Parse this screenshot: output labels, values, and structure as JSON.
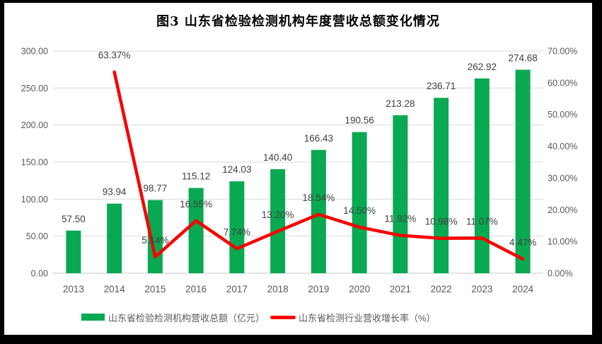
{
  "frame": {
    "outer_border_color": "#000000",
    "chart_background": "#FFFFFF"
  },
  "chart_data": {
    "type": "combo",
    "title": "图3  山东省检验检测机构年度营收总额变化情况",
    "categories": [
      "2013",
      "2014",
      "2015",
      "2016",
      "2017",
      "2018",
      "2019",
      "2020",
      "2021",
      "2022",
      "2023",
      "2024"
    ],
    "series": [
      {
        "name": "山东省检验检测机构营收总额（亿元）",
        "type": "bar",
        "axis": "left",
        "color": "#09A952",
        "values": [
          57.5,
          93.94,
          98.77,
          115.12,
          124.03,
          140.4,
          166.43,
          190.56,
          213.28,
          236.71,
          262.92,
          274.68
        ],
        "labels": [
          "57.50",
          "93.94",
          "98.77",
          "115.12",
          "124.03",
          "140.40",
          "166.43",
          "190.56",
          "213.28",
          "236.71",
          "262.92",
          "274.68"
        ]
      },
      {
        "name": "山东省检测行业营收增长率（%）",
        "type": "line",
        "axis": "right",
        "color": "#F80000",
        "values": [
          null,
          63.37,
          5.14,
          16.55,
          7.74,
          13.2,
          18.54,
          14.5,
          11.92,
          10.98,
          11.07,
          4.47
        ],
        "labels": [
          null,
          "63.37%",
          "5.14%",
          "16.55%",
          "7.74%",
          "13.20%",
          "18.54%",
          "14.50%",
          "11.92%",
          "10.98%",
          "11.07%",
          "4.47%"
        ]
      }
    ],
    "left_axis": {
      "min": 0,
      "max": 300,
      "step": 50,
      "tick_labels": [
        "0.00",
        "50.00",
        "100.00",
        "150.00",
        "200.00",
        "250.00",
        "300.00"
      ]
    },
    "right_axis": {
      "min": 0,
      "max": 70,
      "step": 10,
      "tick_labels": [
        "0.00%",
        "10.00%",
        "20.00%",
        "30.00%",
        "40.00%",
        "50.00%",
        "60.00%",
        "70.00%"
      ]
    },
    "grid": true,
    "legend_position": "bottom"
  },
  "colors": {
    "gridline": "#D9D9D9",
    "axis_line": "#C9C9C9",
    "axis_text": "#595959",
    "data_label_text": "#404040",
    "title_text": "#000000"
  }
}
